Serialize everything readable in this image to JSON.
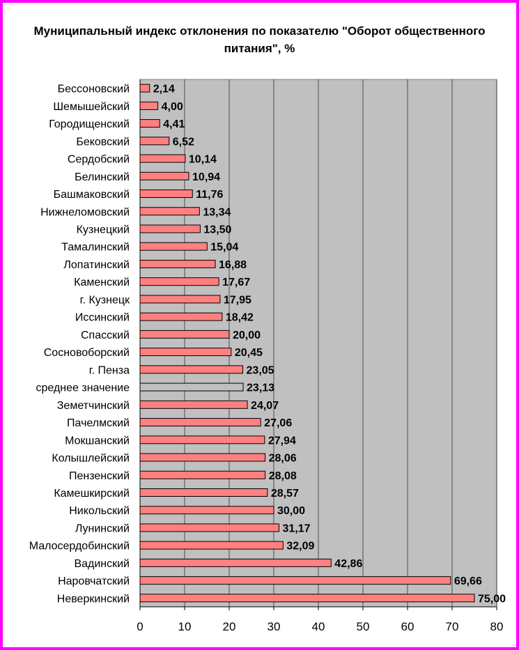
{
  "chart_data": {
    "type": "bar",
    "orientation": "horizontal",
    "title": "Муниципальный индекс отклонения по показателю \"Оборот общественного питания\", %",
    "categories": [
      "Бессоновский",
      "Шемышейский",
      "Городищенский",
      "Бековский",
      "Сердобский",
      "Белинский",
      "Башмаковский",
      "Нижнеломовский",
      "Кузнецкий",
      "Тамалинский",
      "Лопатинский",
      "Каменский",
      "г. Кузнецк",
      "Иссинский",
      "Спасский",
      "Сосновоборский",
      "г. Пенза",
      "среднее значение",
      "Земетчинский",
      "Пачелмский",
      "Мокшанский",
      "Колышлейский",
      "Пензенский",
      "Камешкирский",
      "Никольский",
      "Лунинский",
      "Малосердобинский",
      "Вадинский",
      "Наровчатский",
      "Неверкинский"
    ],
    "values": [
      2.14,
      4.0,
      4.41,
      6.52,
      10.14,
      10.94,
      11.76,
      13.34,
      13.5,
      15.04,
      16.88,
      17.67,
      17.95,
      18.42,
      20.0,
      20.45,
      23.05,
      23.13,
      24.07,
      27.06,
      27.94,
      28.06,
      28.08,
      28.57,
      30.0,
      31.17,
      32.09,
      42.86,
      69.66,
      75.0
    ],
    "value_labels": [
      "2,14",
      "4,00",
      "4,41",
      "6,52",
      "10,14",
      "10,94",
      "11,76",
      "13,34",
      "13,50",
      "15,04",
      "16,88",
      "17,67",
      "17,95",
      "18,42",
      "20,00",
      "20,45",
      "23,05",
      "23,13",
      "24,07",
      "27,06",
      "27,94",
      "28,06",
      "28,08",
      "28,57",
      "30,00",
      "31,17",
      "32,09",
      "42,86",
      "69,66",
      "75,00"
    ],
    "highlight_category": "среднее значение",
    "xlim": [
      0,
      80
    ],
    "xticks": [
      "0",
      "10",
      "20",
      "30",
      "40",
      "50",
      "60",
      "70",
      "80"
    ],
    "xtick_values": [
      0,
      10,
      20,
      30,
      40,
      50,
      60,
      70,
      80
    ],
    "grid": "vertical",
    "legend": "none",
    "colors": {
      "bar": "#ff8080",
      "highlight_bar": "#c0c0c0",
      "plot_bg": "#c0c0c0",
      "frame": "#ff00ff"
    }
  }
}
